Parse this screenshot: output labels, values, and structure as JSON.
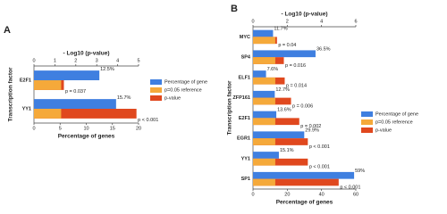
{
  "chart_data": [
    {
      "type": "hbar",
      "panel": "A",
      "ylabel": "Transcription factor",
      "xlabel": "Percentage of genes",
      "x2label": "- Log10 (p-value)",
      "categories": [
        "E2F1",
        "YY1"
      ],
      "xlim": [
        0,
        20
      ],
      "xticks": [
        0,
        5,
        10,
        15,
        20
      ],
      "x2lim": [
        0,
        5
      ],
      "x2ticks": [
        0,
        1,
        2,
        3,
        4,
        5
      ],
      "series": [
        {
          "name": "Percentage of gene",
          "color": "#3f7fe0",
          "values": [
            12.5,
            15.7
          ],
          "value_labels": [
            "12.5%",
            "15.7%"
          ]
        },
        {
          "name": "p=0.05 reference",
          "color": "#f5a93a",
          "axis": "x2",
          "values": [
            1.3,
            1.3
          ]
        },
        {
          "name": "p-value",
          "color": "#e0481e",
          "axis": "x2",
          "values": [
            1.43,
            4.9
          ]
        }
      ],
      "p_value_labels": [
        "p = 0.037",
        "p < 0.001"
      ]
    },
    {
      "type": "hbar",
      "panel": "B",
      "ylabel": "Transcription factor",
      "xlabel": "Percentage of genes",
      "x2label": "- Log10 (p-value)",
      "categories": [
        "MYC",
        "SP4",
        "ELF1",
        "ZFP161",
        "E2F1",
        "EGR1",
        "YY1",
        "SP1"
      ],
      "xlim": [
        0,
        60
      ],
      "xticks": [
        0,
        20,
        40,
        60
      ],
      "x2lim": [
        0,
        6
      ],
      "x2ticks": [
        0,
        2,
        4,
        6
      ],
      "series": [
        {
          "name": "Percentage of gene",
          "color": "#3f7fe0",
          "values": [
            11.7,
            36.5,
            7.6,
            12.7,
            13.6,
            29.9,
            15.1,
            59
          ],
          "value_labels": [
            "11.7%",
            "36.5%",
            "7.6%",
            "12.7%",
            "13.6%",
            "29.9%",
            "15.1%",
            "59%"
          ]
        },
        {
          "name": "p=0.05 reference",
          "color": "#f5a93a",
          "axis": "x2",
          "values": [
            1.3,
            1.3,
            1.3,
            1.3,
            1.3,
            1.3,
            1.3,
            1.3
          ]
        },
        {
          "name": "p-value",
          "color": "#e0481e",
          "axis": "x2",
          "values": [
            1.4,
            1.8,
            1.85,
            2.22,
            2.7,
            3.2,
            3.2,
            5.0
          ]
        }
      ],
      "p_value_labels": [
        "p = 0.04",
        "p = 0.016",
        "p = 0.014",
        "p = 0.006",
        "p = 0.002",
        "p < 0.001",
        "p < 0.001",
        "p < 0.001"
      ]
    }
  ]
}
